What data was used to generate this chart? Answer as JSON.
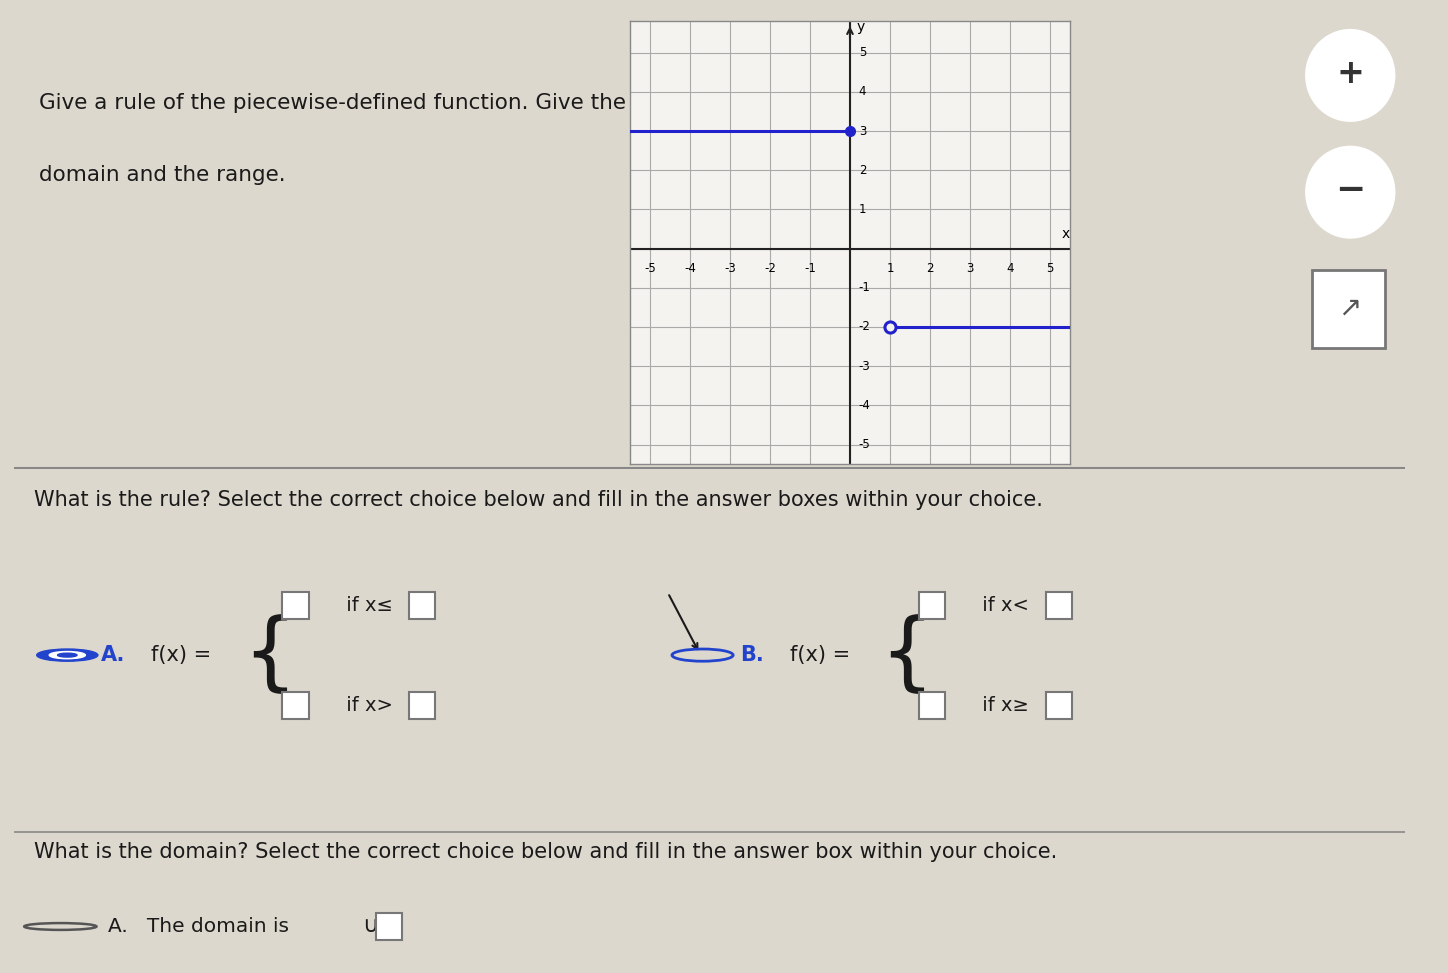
{
  "bg_color": "#ddd8ce",
  "text_color": "#1a1a1a",
  "title_line1": "Give a rule of the piecewise-defined function. Give the",
  "title_line2": "domain and the range.",
  "question1": "What is the rule? Select the correct choice below and fill in the answer boxes within your choice.",
  "question2": "What is the domain? Select the correct choice below and fill in the answer box within your choice.",
  "line1_color": "#2222cc",
  "line2_color": "#2222cc",
  "chegg_icon_color": "#555555",
  "graph_bg": "#f5f3ef",
  "grid_color": "#aaaaaa",
  "axis_color": "#222222"
}
